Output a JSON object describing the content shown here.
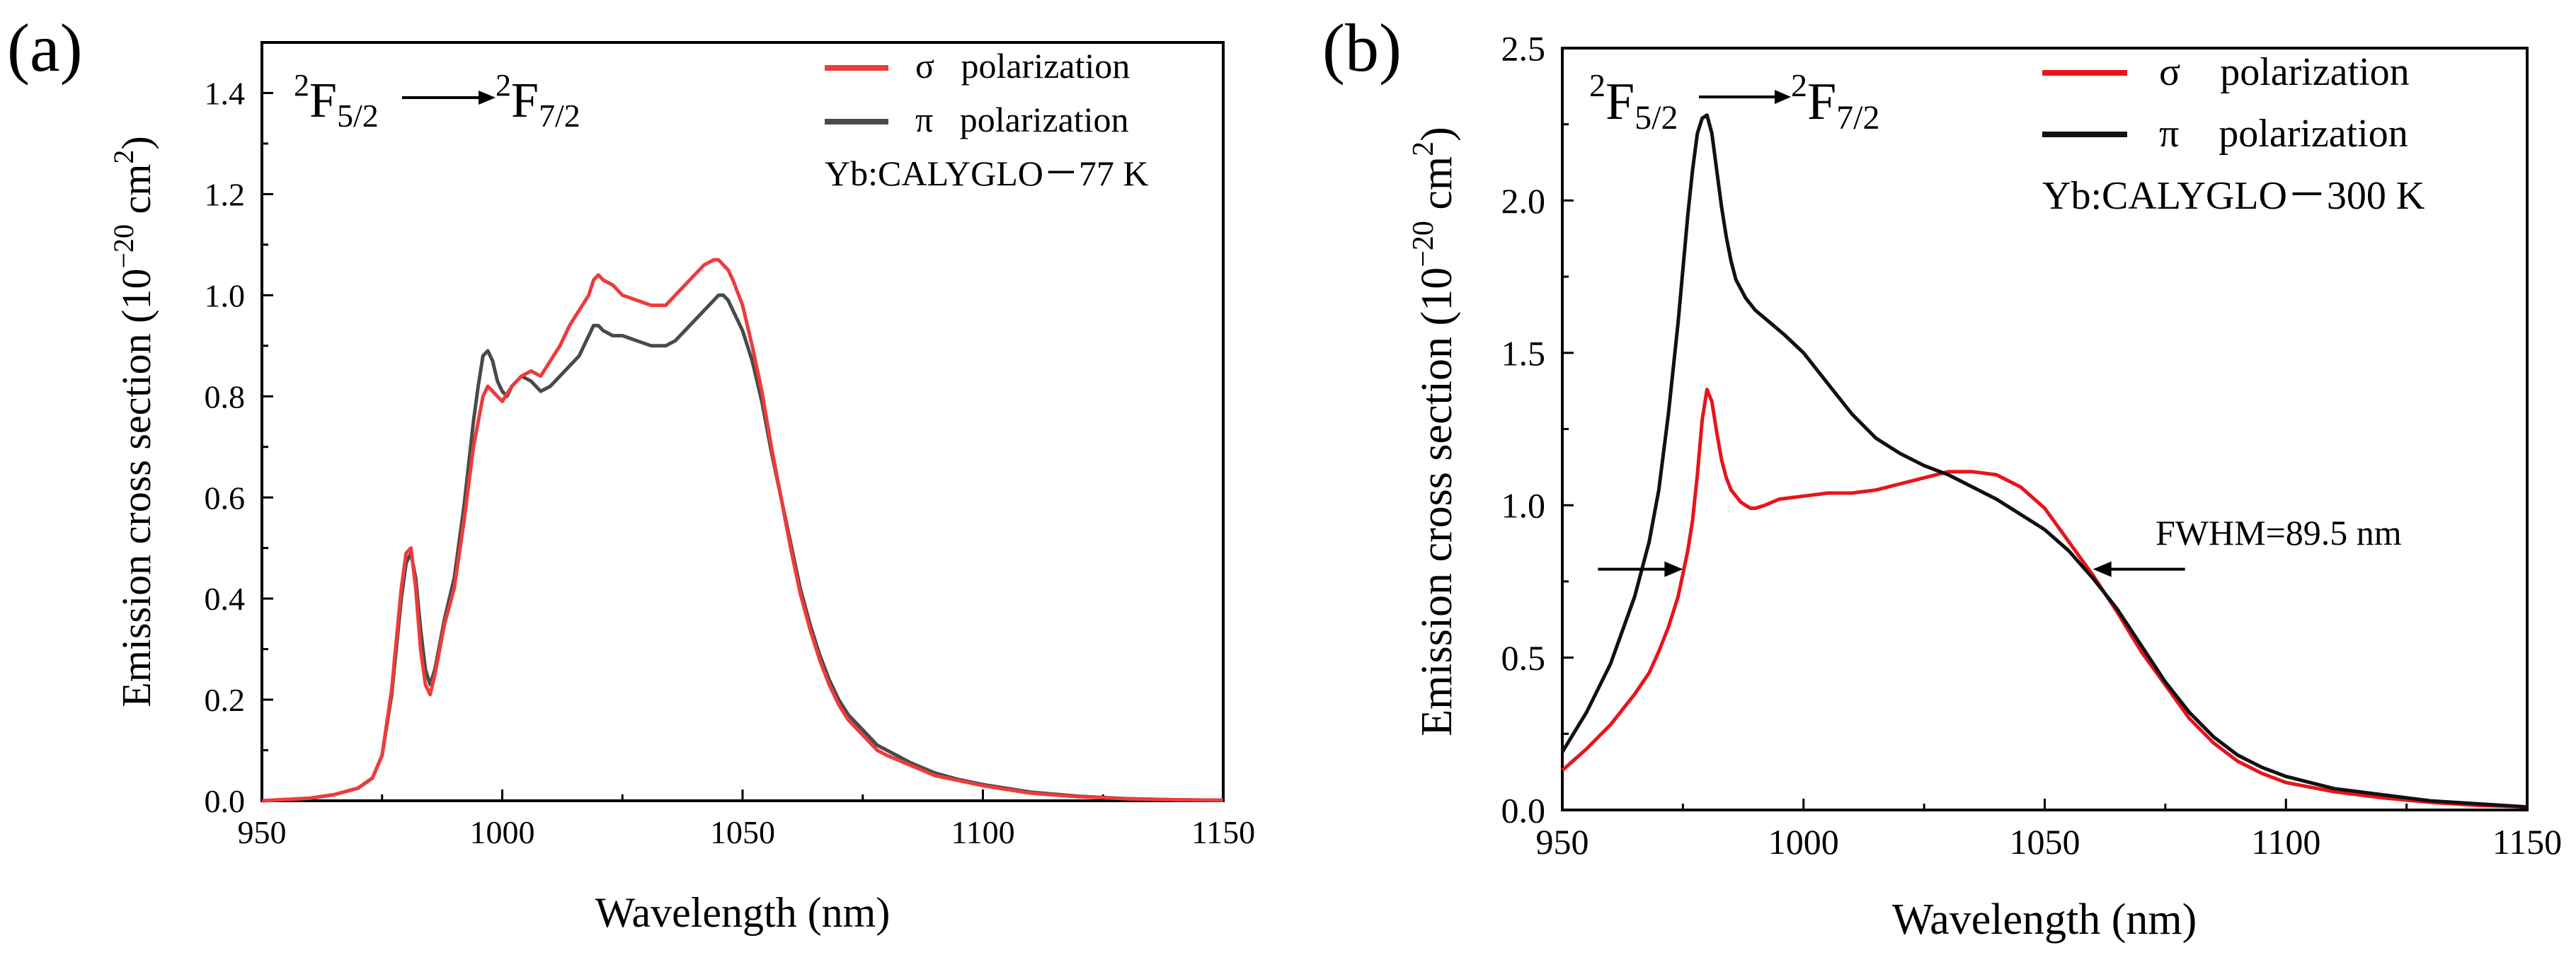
{
  "chart_data": [
    {
      "type": "line",
      "panel_label": "(a)",
      "xlabel": "Wavelength (nm)",
      "ylabel": "Emission cross section (10⁻²⁰ cm²)",
      "xlim": [
        950,
        1150
      ],
      "ylim": [
        0,
        1.5
      ],
      "xticks": [
        950,
        1000,
        1050,
        1100,
        1150
      ],
      "yticks": [
        0.0,
        0.2,
        0.4,
        0.6,
        0.8,
        1.0,
        1.2,
        1.4
      ],
      "ytick_labels": [
        "0.0",
        "0.2",
        "0.4",
        "0.6",
        "0.8",
        "1.0",
        "1.2",
        "1.4"
      ],
      "grid": false,
      "legend_position": "top-right",
      "transition": {
        "upper": "2F5/2",
        "lower": "2F7/2"
      },
      "sample_label": "Yb:CALYGLO－77 K",
      "series": [
        {
          "name": "σ   polarization",
          "color": "#ee3b3b",
          "x": [
            950,
            960,
            965,
            970,
            973,
            975,
            977,
            979,
            980,
            981,
            982,
            983,
            984,
            985,
            986,
            988,
            990,
            992,
            994,
            996,
            997,
            998,
            999,
            1000,
            1002,
            1004,
            1006,
            1008,
            1010,
            1012,
            1014,
            1016,
            1018,
            1019,
            1020,
            1021,
            1023,
            1025,
            1028,
            1031,
            1034,
            1036,
            1038,
            1040,
            1042,
            1044,
            1045,
            1046,
            1047,
            1048,
            1050,
            1052,
            1054,
            1056,
            1058,
            1060,
            1062,
            1064,
            1066,
            1068,
            1070,
            1072,
            1075,
            1078,
            1080,
            1085,
            1090,
            1095,
            1100,
            1110,
            1120,
            1130,
            1140,
            1150
          ],
          "values": [
            0.0,
            0.005,
            0.012,
            0.025,
            0.045,
            0.09,
            0.22,
            0.42,
            0.49,
            0.5,
            0.42,
            0.3,
            0.23,
            0.21,
            0.25,
            0.35,
            0.42,
            0.55,
            0.7,
            0.8,
            0.82,
            0.81,
            0.8,
            0.79,
            0.82,
            0.84,
            0.85,
            0.84,
            0.87,
            0.9,
            0.94,
            0.97,
            1.0,
            1.03,
            1.04,
            1.03,
            1.02,
            1.0,
            0.99,
            0.98,
            0.98,
            1.0,
            1.02,
            1.04,
            1.06,
            1.07,
            1.07,
            1.06,
            1.05,
            1.03,
            0.98,
            0.9,
            0.81,
            0.7,
            0.6,
            0.5,
            0.41,
            0.34,
            0.28,
            0.23,
            0.19,
            0.16,
            0.13,
            0.1,
            0.09,
            0.07,
            0.05,
            0.04,
            0.03,
            0.015,
            0.008,
            0.004,
            0.002,
            0.001
          ]
        },
        {
          "name": "π   polarization",
          "color": "#4a4a4a",
          "x": [
            950,
            960,
            965,
            970,
            973,
            975,
            977,
            979,
            980,
            981,
            982,
            983,
            984,
            985,
            986,
            988,
            990,
            992,
            994,
            995,
            996,
            997,
            998,
            999,
            1000,
            1001,
            1002,
            1004,
            1006,
            1008,
            1010,
            1012,
            1014,
            1016,
            1018,
            1019,
            1020,
            1021,
            1023,
            1025,
            1028,
            1031,
            1034,
            1036,
            1038,
            1040,
            1042,
            1044,
            1045,
            1046,
            1047,
            1048,
            1050,
            1052,
            1054,
            1056,
            1058,
            1060,
            1062,
            1064,
            1066,
            1068,
            1070,
            1072,
            1075,
            1078,
            1080,
            1085,
            1090,
            1095,
            1100,
            1110,
            1120,
            1130,
            1140,
            1150
          ],
          "values": [
            0.0,
            0.005,
            0.012,
            0.025,
            0.045,
            0.09,
            0.21,
            0.4,
            0.47,
            0.49,
            0.44,
            0.34,
            0.26,
            0.23,
            0.26,
            0.36,
            0.44,
            0.58,
            0.75,
            0.82,
            0.88,
            0.89,
            0.87,
            0.83,
            0.81,
            0.8,
            0.82,
            0.84,
            0.83,
            0.81,
            0.82,
            0.84,
            0.86,
            0.88,
            0.92,
            0.94,
            0.94,
            0.93,
            0.92,
            0.92,
            0.91,
            0.9,
            0.9,
            0.91,
            0.93,
            0.95,
            0.97,
            0.99,
            1.0,
            1.0,
            0.99,
            0.97,
            0.93,
            0.87,
            0.79,
            0.69,
            0.6,
            0.51,
            0.42,
            0.35,
            0.29,
            0.24,
            0.2,
            0.17,
            0.14,
            0.11,
            0.1,
            0.075,
            0.055,
            0.042,
            0.032,
            0.017,
            0.009,
            0.004,
            0.002,
            0.001
          ]
        }
      ]
    },
    {
      "type": "line",
      "panel_label": "(b)",
      "xlabel": "Wavelength (nm)",
      "ylabel": "Emission cross section (10⁻²⁰ cm²)",
      "xlim": [
        950,
        1150
      ],
      "ylim": [
        0,
        2.5
      ],
      "xticks": [
        950,
        1000,
        1050,
        1100,
        1150
      ],
      "yticks": [
        0.0,
        0.5,
        1.0,
        1.5,
        2.0,
        2.5
      ],
      "ytick_labels": [
        "0.0",
        "0.5",
        "1.0",
        "1.5",
        "2.0",
        "2.5"
      ],
      "grid": false,
      "legend_position": "top-right",
      "transition": {
        "upper": "2F5/2",
        "lower": "2F7/2"
      },
      "sample_label": "Yb:CALYGLO－300 K",
      "annotation": {
        "text": "FWHM=89.5 nm",
        "arrows_at_x": [
          975,
          1060
        ],
        "arrows_at_y": 0.79
      },
      "series": [
        {
          "name": "σ    polarization",
          "color": "#e8141c",
          "x": [
            950,
            955,
            960,
            965,
            968,
            970,
            972,
            974,
            976,
            977,
            978,
            979,
            980,
            981,
            982,
            983,
            984,
            985,
            986,
            987,
            988,
            989,
            990,
            992,
            995,
            1000,
            1005,
            1010,
            1015,
            1020,
            1025,
            1030,
            1035,
            1040,
            1045,
            1050,
            1055,
            1060,
            1065,
            1070,
            1075,
            1080,
            1085,
            1090,
            1095,
            1100,
            1110,
            1120,
            1130,
            1140,
            1150
          ],
          "values": [
            0.13,
            0.2,
            0.28,
            0.38,
            0.45,
            0.52,
            0.6,
            0.7,
            0.85,
            0.95,
            1.1,
            1.28,
            1.38,
            1.34,
            1.24,
            1.15,
            1.09,
            1.05,
            1.03,
            1.01,
            1.0,
            0.99,
            0.99,
            1.0,
            1.02,
            1.03,
            1.04,
            1.04,
            1.05,
            1.07,
            1.09,
            1.11,
            1.11,
            1.1,
            1.06,
            0.99,
            0.88,
            0.77,
            0.65,
            0.52,
            0.41,
            0.3,
            0.22,
            0.16,
            0.12,
            0.09,
            0.06,
            0.04,
            0.025,
            0.015,
            0.01
          ]
        },
        {
          "name": "π    polarization",
          "color": "#111111",
          "x": [
            950,
            955,
            960,
            965,
            968,
            970,
            972,
            974,
            976,
            977,
            978,
            979,
            980,
            981,
            982,
            983,
            984,
            985,
            986,
            988,
            990,
            993,
            996,
            1000,
            1005,
            1010,
            1015,
            1020,
            1025,
            1030,
            1035,
            1040,
            1045,
            1050,
            1055,
            1060,
            1065,
            1070,
            1075,
            1080,
            1085,
            1090,
            1095,
            1100,
            1110,
            1120,
            1130,
            1140,
            1150
          ],
          "values": [
            0.19,
            0.32,
            0.48,
            0.7,
            0.88,
            1.05,
            1.3,
            1.6,
            1.95,
            2.1,
            2.22,
            2.27,
            2.28,
            2.22,
            2.1,
            1.98,
            1.88,
            1.8,
            1.74,
            1.68,
            1.64,
            1.6,
            1.56,
            1.5,
            1.4,
            1.3,
            1.22,
            1.17,
            1.13,
            1.1,
            1.06,
            1.02,
            0.97,
            0.92,
            0.85,
            0.76,
            0.66,
            0.54,
            0.42,
            0.32,
            0.24,
            0.18,
            0.14,
            0.11,
            0.07,
            0.05,
            0.03,
            0.02,
            0.01
          ]
        }
      ]
    }
  ]
}
